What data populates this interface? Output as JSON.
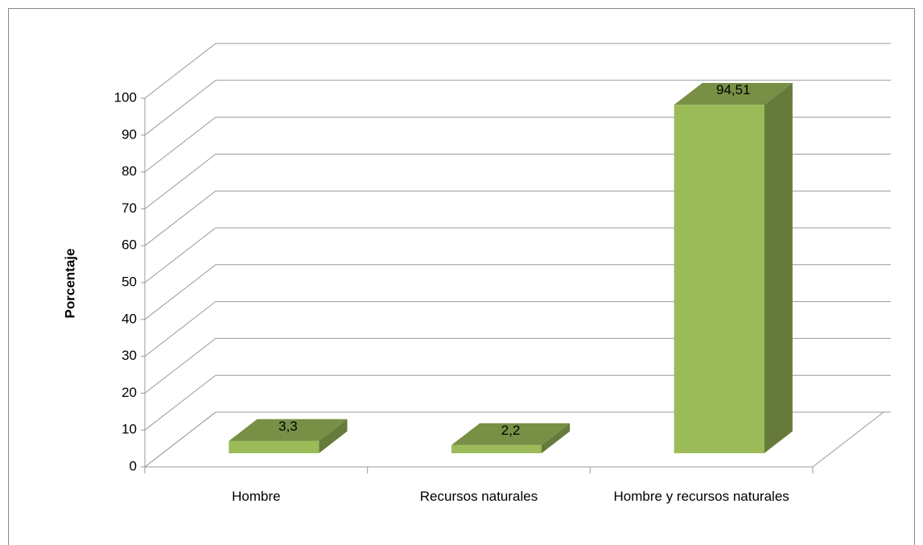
{
  "chart_data": {
    "type": "bar3d",
    "categories": [
      "Hombre",
      "Recursos naturales",
      "Hombre y recursos naturales"
    ],
    "values": [
      3.3,
      2.2,
      94.51
    ],
    "value_labels": [
      "3,3",
      "2,2",
      "94,51"
    ],
    "color": "#9bbb59",
    "y_label": "Porcentaje",
    "ylim": [
      0,
      100
    ],
    "yticks": [
      0,
      10,
      20,
      30,
      40,
      50,
      60,
      70,
      80,
      90,
      100
    ],
    "grid": true
  }
}
